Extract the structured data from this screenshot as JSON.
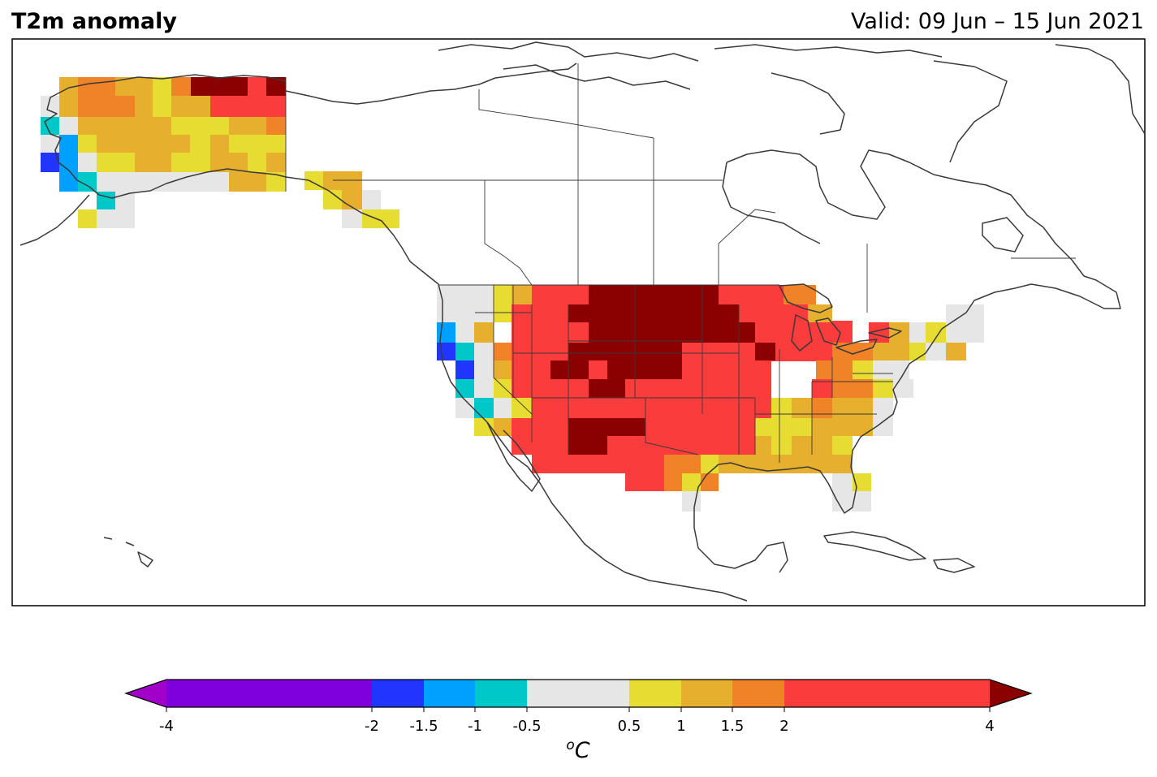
{
  "header": {
    "title": "T2m anomaly",
    "valid": "Valid: 09 Jun – 15 Jun 2021"
  },
  "colorbar": {
    "unit_prefix": "o",
    "unit_main": "C",
    "ticks": [
      "-4",
      "-2",
      "-1.5",
      "-1",
      "-0.5",
      "0.5",
      "1",
      "1.5",
      "2",
      "4"
    ],
    "bins": [
      {
        "from": -4,
        "to": -2,
        "color": "#8000dd"
      },
      {
        "from": -2,
        "to": -1.5,
        "color": "#2235ff"
      },
      {
        "from": -1.5,
        "to": -1,
        "color": "#00a0ff"
      },
      {
        "from": -1,
        "to": -0.5,
        "color": "#00c8c8"
      },
      {
        "from": -0.5,
        "to": 0.5,
        "color": "#e6e6e6"
      },
      {
        "from": 0.5,
        "to": 1,
        "color": "#e6dc32"
      },
      {
        "from": 1,
        "to": 1.5,
        "color": "#e6af2d"
      },
      {
        "from": 1.5,
        "to": 2,
        "color": "#f08228"
      },
      {
        "from": 2,
        "to": 4,
        "color": "#fa3c3c"
      }
    ],
    "under_color": "#a000c8",
    "over_color": "#8b0000"
  }
}
